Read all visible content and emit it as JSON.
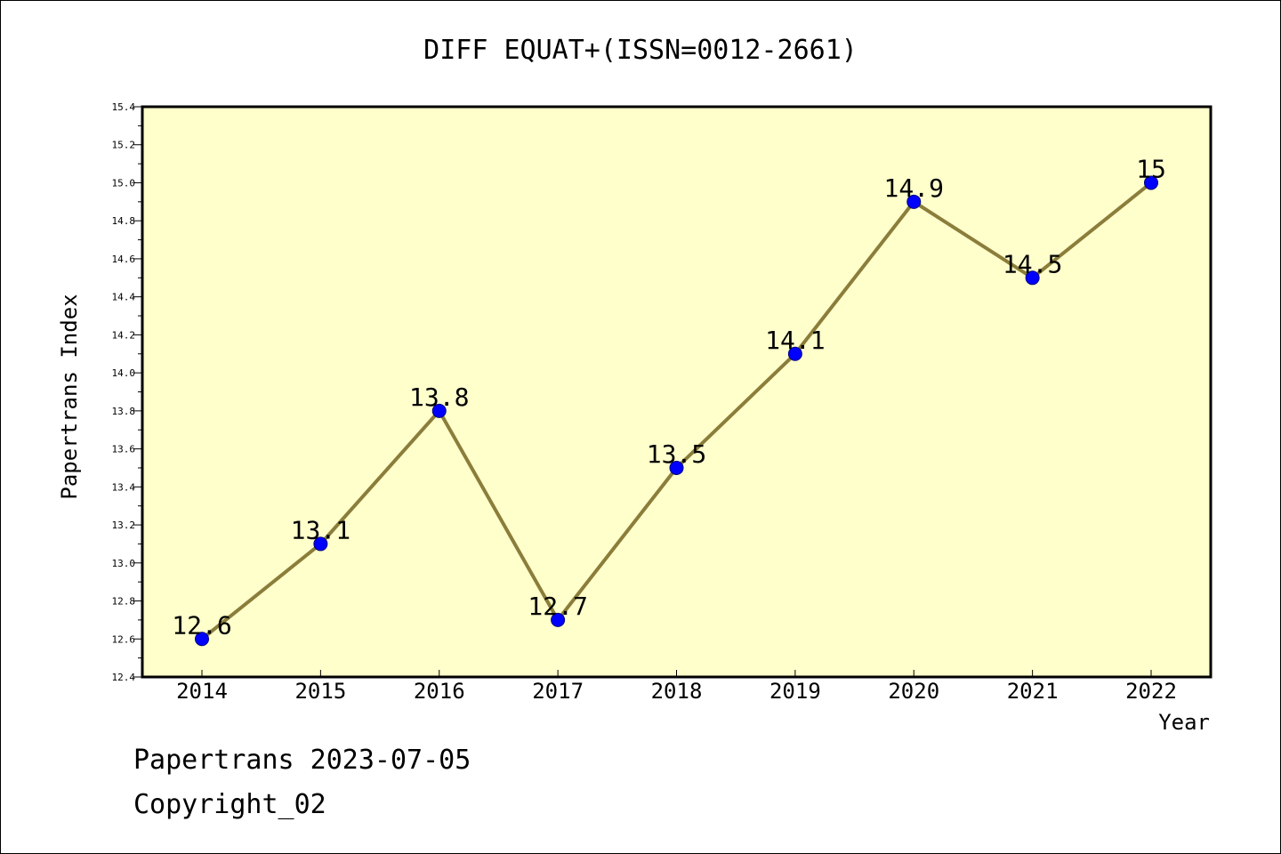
{
  "colors": {
    "plot_background": "#ffffcc",
    "line": "#8b7d3a",
    "marker": "#0000ff",
    "frame": "#000000"
  },
  "chart_data": {
    "type": "line",
    "title": "DIFF EQUAT+(ISSN=0012-2661)",
    "xlabel": "Year",
    "ylabel": "Papertrans Index",
    "categories": [
      "2014",
      "2015",
      "2016",
      "2017",
      "2018",
      "2019",
      "2020",
      "2021",
      "2022"
    ],
    "series": [
      {
        "values": [
          12.6,
          13.1,
          13.8,
          12.7,
          13.5,
          14.1,
          14.9,
          14.5,
          15.0
        ],
        "data_labels": [
          "12.6",
          "13.1",
          "13.8",
          "12.7",
          "13.5",
          "14.1",
          "14.9",
          "14.5",
          "15"
        ]
      }
    ],
    "ylim": [
      12.4,
      15.4
    ],
    "yticks": [
      "12.4",
      "12.6",
      "12.8",
      "13.0",
      "13.2",
      "13.4",
      "13.6",
      "13.8",
      "14.0",
      "14.2",
      "14.4",
      "14.6",
      "14.8",
      "15.0",
      "15.2",
      "15.4"
    ],
    "grid": false,
    "legend": "none"
  },
  "footer": {
    "line1": "Papertrans 2023-07-05",
    "line2": "Copyright_02"
  }
}
